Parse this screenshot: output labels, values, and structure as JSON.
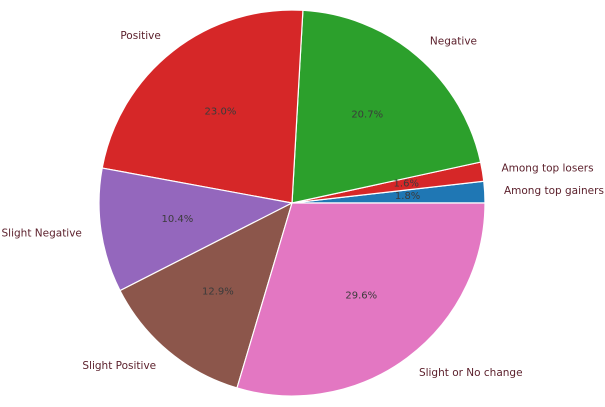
{
  "chart_data": {
    "type": "pie",
    "categories": [
      "Among top gainers",
      "Among top losers",
      "Negative",
      "Positive",
      "Slight Negative",
      "Slight Positive",
      "Slight or No change"
    ],
    "values": [
      1.8,
      1.6,
      20.7,
      23.0,
      10.4,
      12.9,
      29.6
    ],
    "value_labels": [
      "1.8%",
      "1.6%",
      "20.7%",
      "23.0%",
      "10.4%",
      "12.9%",
      "29.6%"
    ],
    "colors": [
      "#1f77b4",
      "#d62728",
      "#2ca02c",
      "#d62728",
      "#9467bd",
      "#8c564b",
      "#e377c2"
    ],
    "title": "",
    "legend": "none"
  }
}
